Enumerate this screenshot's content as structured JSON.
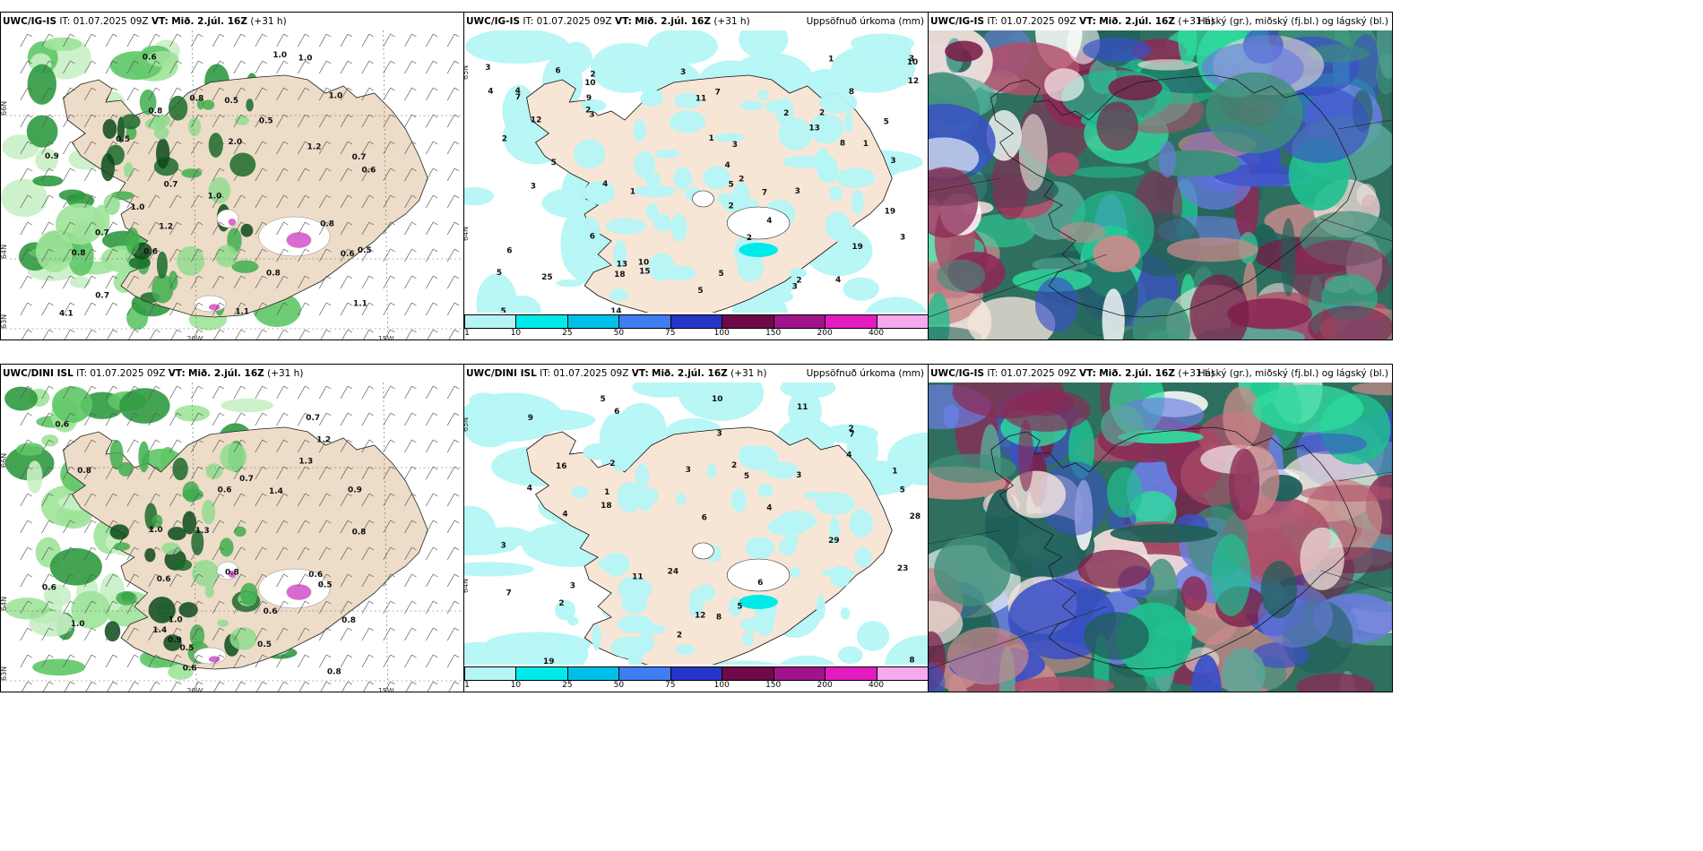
{
  "panels": [
    {
      "id": "top-left",
      "model": "UWC/IG-IS",
      "issue_label": "IT:",
      "issue": "01.07.2025 09Z",
      "valid_label": "VT:",
      "valid": "Mið. 2.júl. 16Z",
      "lead": "(+31 h)",
      "product": "",
      "axes": {
        "lat": [
          "66N",
          "64N",
          "63N"
        ],
        "lon": [
          "20W",
          "15W"
        ]
      },
      "labels": [
        "0.8",
        "0.7",
        "0.5",
        "0.6",
        "0.7",
        "0.5",
        "1.2",
        "1.0",
        "0.6",
        "1.0",
        "0.5",
        "0.8",
        "1.2",
        "0.6",
        "0.8",
        "1.0",
        "1.0",
        "0.9",
        "0.6",
        "0.8",
        "1.1",
        "0.5",
        "0.7",
        "0.7",
        "2.0",
        "1.0",
        "4.1",
        "0.8",
        "1.1"
      ]
    },
    {
      "id": "top-mid",
      "model": "UWC/IG-IS",
      "issue_label": "IT:",
      "issue": "01.07.2025 09Z",
      "valid_label": "VT:",
      "valid": "Mið. 2.júl. 16Z",
      "lead": "(+31 h)",
      "product": "Uppsöfnuð úrkoma (mm)",
      "axes": {
        "lat": [
          "65N",
          "64N"
        ]
      },
      "labels": [
        "2",
        "3",
        "2",
        "3",
        "4",
        "5",
        "6",
        "2",
        "3",
        "2",
        "4",
        "5",
        "1",
        "3",
        "2",
        "1",
        "6",
        "3",
        "4",
        "10",
        "5",
        "12",
        "8",
        "2",
        "3",
        "9",
        "5",
        "10",
        "3",
        "13",
        "2",
        "7",
        "11",
        "8",
        "1",
        "3",
        "4",
        "25",
        "19",
        "18",
        "15",
        "13",
        "19",
        "10",
        "4",
        "7",
        "3",
        "5",
        "4",
        "3",
        "2",
        "1",
        "14",
        "5",
        "12",
        "2",
        "5",
        "6",
        "7"
      ],
      "colorbar": {
        "ticks": [
          "1",
          "10",
          "25",
          "50",
          "75",
          "100",
          "150",
          "200",
          "400"
        ],
        "colors": [
          "#b5f5f5",
          "#00eaea",
          "#00bfe8",
          "#3f7df0",
          "#2535c8",
          "#6e0a4a",
          "#a0138a",
          "#e21cbe",
          "#f7a9ef"
        ]
      }
    },
    {
      "id": "top-right",
      "model": "UWC/IG-IS",
      "issue_label": "IT:",
      "issue": "01.07.2025 09Z",
      "valid_label": "VT:",
      "valid": "Mið. 2.júl. 16Z",
      "lead": "(+31 h)",
      "product": "Háský (gr.), miðský (fj.bl.) og lágský (bl.)"
    },
    {
      "id": "bottom-left",
      "model": "UWC/DINI ISL",
      "issue_label": "IT:",
      "issue": "01.07.2025 09Z",
      "valid_label": "VT:",
      "valid": "Mið. 2.júl. 16Z",
      "lead": "(+31 h)",
      "product": "",
      "axes": {
        "lat": [
          "66N",
          "64N",
          "63N"
        ],
        "lon": [
          "20W",
          "15W"
        ]
      },
      "labels": [
        "0.8",
        "0.6",
        "0.6",
        "0.9",
        "0.8",
        "1.3",
        "1.4",
        "0.6",
        "0.8",
        "0.6",
        "1.3",
        "0.7",
        "1.2",
        "0.7",
        "1.0",
        "0.8",
        "0.6",
        "0.9",
        "0.6",
        "0.5",
        "1.0",
        "0.5",
        "1.0",
        "0.6",
        "1.4",
        "0.8",
        "0.5"
      ]
    },
    {
      "id": "bottom-mid",
      "model": "UWC/DINI ISL",
      "issue_label": "IT:",
      "issue": "01.07.2025 09Z",
      "valid_label": "VT:",
      "valid": "Mið. 2.júl. 16Z",
      "lead": "(+31 h)",
      "product": "Uppsöfnuð úrkoma (mm)",
      "axes": {
        "lat": [
          "65N",
          "64N"
        ]
      },
      "labels": [
        "3",
        "2",
        "1",
        "5",
        "4",
        "7",
        "3",
        "2",
        "6",
        "4",
        "3",
        "5",
        "2",
        "8",
        "4",
        "11",
        "7",
        "5",
        "6",
        "3",
        "2",
        "28",
        "29",
        "24",
        "19",
        "16",
        "12",
        "18",
        "23",
        "9",
        "11",
        "10",
        "5",
        "4",
        "3",
        "2",
        "1",
        "6",
        "8"
      ],
      "colorbar": {
        "ticks": [
          "1",
          "10",
          "25",
          "50",
          "75",
          "100",
          "150",
          "200",
          "400"
        ],
        "colors": [
          "#b5f5f5",
          "#00eaea",
          "#00bfe8",
          "#3f7df0",
          "#2535c8",
          "#6e0a4a",
          "#a0138a",
          "#e21cbe",
          "#f7a9ef"
        ]
      }
    },
    {
      "id": "bottom-right",
      "model": "UWC/IG-IS",
      "issue_label": "IT:",
      "issue": "01.07.2025 09Z",
      "valid_label": "VT:",
      "valid": "Mið. 2.júl. 16Z",
      "lead": "(+31 h)",
      "product": "Háský (gr.), miðský (fj.bl.) og lágský (bl.)"
    }
  ]
}
